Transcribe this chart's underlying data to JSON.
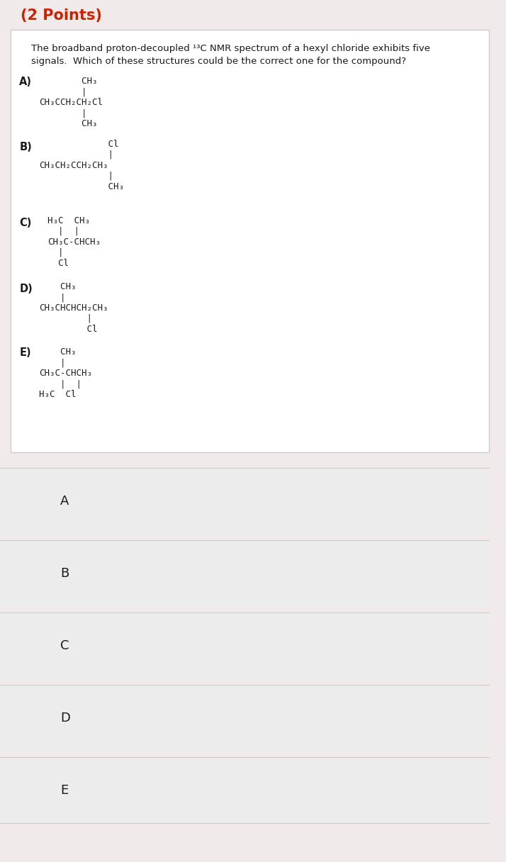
{
  "title_text": "(2 Points)",
  "question_line1": "The broadband proton-decoupled ¹³C NMR spectrum of a hexyl chloride exhibits five",
  "question_line2": "signals.  Which of these structures could be the correct one for the compound?",
  "bg_color_top": "#f0eaea",
  "bg_color_box": "#ffffff",
  "bg_color_options": "#ececec",
  "border_color": "#cccccc",
  "text_color": "#1a1a1a",
  "title_color": "#cc2200",
  "options": [
    "A",
    "B",
    "C",
    "D",
    "E"
  ],
  "struct_A": [
    [
      "        CH₃",
      0
    ],
    [
      "        |",
      1
    ],
    [
      "CH₃CCH₂CH₂Cl",
      2
    ],
    [
      "        |",
      3
    ],
    [
      "        CH₃",
      4
    ]
  ],
  "struct_B": [
    [
      "             Cl",
      0
    ],
    [
      "             |",
      1
    ],
    [
      "CH₃CH₂CCH₂CH₃",
      2
    ],
    [
      "             |",
      3
    ],
    [
      "             CH₃",
      4
    ]
  ],
  "struct_C": [
    [
      "H₃C  CH₃",
      0
    ],
    [
      "  |  |",
      1
    ],
    [
      "CH₃C-CHCH₃",
      2
    ],
    [
      "  |",
      3
    ],
    [
      "  Cl",
      4
    ]
  ],
  "struct_D": [
    [
      "    CH₃",
      0
    ],
    [
      "    |",
      1
    ],
    [
      "CH₃CHCHCH₂CH₃",
      2
    ],
    [
      "         |",
      3
    ],
    [
      "         Cl",
      4
    ]
  ],
  "struct_E": [
    [
      "    CH₃",
      0
    ],
    [
      "    |",
      1
    ],
    [
      "CH₃C-CHCH₃",
      2
    ],
    [
      "    |  |",
      3
    ],
    [
      "H₃C  Cl",
      4
    ]
  ]
}
